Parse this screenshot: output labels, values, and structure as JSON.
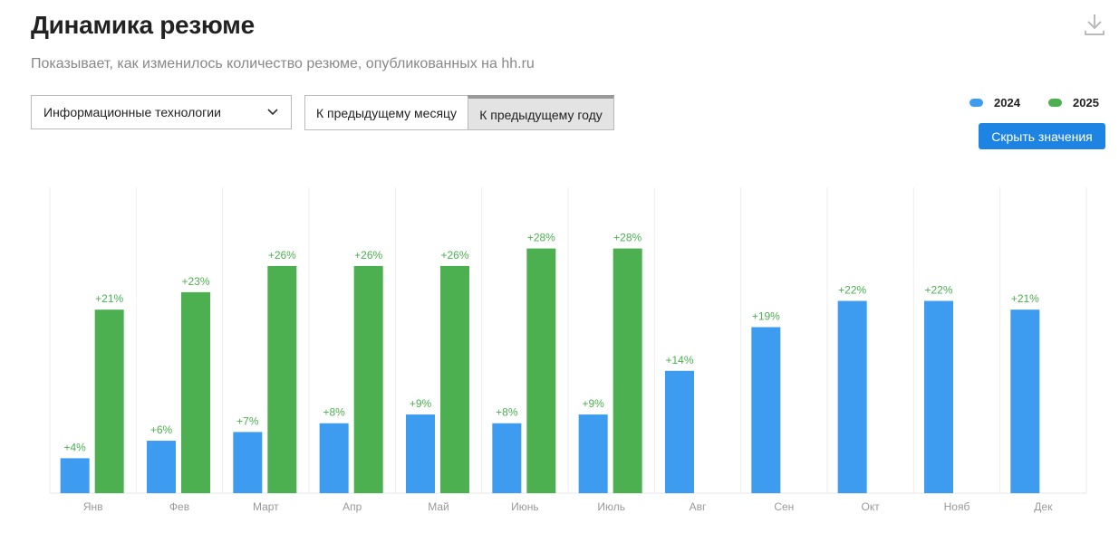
{
  "header": {
    "title": "Динамика резюме",
    "subtitle": "Показывает, как изменилось количество резюме, опубликованных на hh.ru"
  },
  "controls": {
    "industry": "Информационные технологии",
    "period_options": [
      "К предыдущему месяцу",
      "К предыдущему году"
    ],
    "hide_values": "Скрыть значения"
  },
  "chart_data": {
    "type": "bar",
    "categories": [
      "Янв",
      "Фев",
      "Март",
      "Апр",
      "Май",
      "Июнь",
      "Июль",
      "Авг",
      "Сен",
      "Окт",
      "Нояб",
      "Дек"
    ],
    "series": [
      {
        "name": "2024",
        "color": "#3d9bf0",
        "values": [
          4,
          6,
          7,
          8,
          9,
          8,
          9,
          14,
          19,
          22,
          22,
          21
        ],
        "value_labels": [
          "+4%",
          "+6%",
          "+7%",
          "+8%",
          "+9%",
          "+8%",
          "+9%",
          "+14%",
          "+19%",
          "+22%",
          "+22%",
          "+21%"
        ]
      },
      {
        "name": "2025",
        "color": "#4caf50",
        "values": [
          21,
          23,
          26,
          26,
          26,
          28,
          28,
          null,
          null,
          null,
          null,
          null
        ],
        "value_labels": [
          "+21%",
          "+23%",
          "+26%",
          "+26%",
          "+26%",
          "+28%",
          "+28%",
          null,
          null,
          null,
          null,
          null
        ]
      }
    ],
    "ylim": [
      0,
      35
    ],
    "label_color": "#4caf50"
  }
}
